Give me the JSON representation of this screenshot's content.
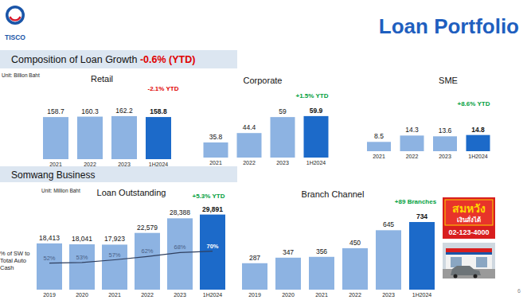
{
  "page": {
    "logo": "TISCO",
    "title": "Loan Portfolio",
    "section_1": {
      "label": "Composition of Loan Growth",
      "value": "-0.6% (YTD)"
    },
    "unit_1": "Unit: Billion Baht",
    "section_2": "Somwang Business",
    "unit_2": "Unit: Million Baht",
    "brand": {
      "name": "สมหวัง",
      "tagline": "เงินสั่งได้",
      "phone": "02-123-4000"
    },
    "page_number": "6"
  },
  "chart_data": [
    {
      "type": "bar",
      "title": "Retail",
      "annotation": "-2.1% YTD",
      "categories": [
        "2021",
        "2022",
        "2023",
        "1H2024"
      ],
      "values": [
        158.7,
        160.3,
        162.2,
        158.8
      ],
      "colors": [
        "#8db3e2",
        "#8db3e2",
        "#8db3e2",
        "#1c6ac9"
      ],
      "ylim": [
        0,
        180
      ],
      "yticks": [],
      "grid": false,
      "data_labels": true,
      "tick_labels": "x"
    },
    {
      "type": "bar",
      "title": "Corporate",
      "annotation": "+1.5% YTD",
      "categories": [
        "2021",
        "2022",
        "2023",
        "1H2024"
      ],
      "values": [
        35.8,
        44.4,
        59.0,
        59.9
      ],
      "colors": [
        "#8db3e2",
        "#8db3e2",
        "#8db3e2",
        "#1c6ac9"
      ],
      "ylim": [
        22,
        62
      ],
      "yticks": [],
      "grid": false,
      "data_labels": true,
      "tick_labels": "x"
    },
    {
      "type": "bar",
      "title": "SME",
      "annotation": "+8.6% YTD",
      "categories": [
        "2021",
        "2022",
        "2023",
        "1H2024"
      ],
      "values": [
        8.5,
        14.3,
        13.6,
        14.8
      ],
      "colors": [
        "#8db3e2",
        "#8db3e2",
        "#8db3e2",
        "#1c6ac9"
      ],
      "ylim": [
        0,
        40
      ],
      "yticks": [],
      "grid": false,
      "data_labels": true,
      "tick_labels": "x"
    },
    {
      "type": "bar",
      "title": "Loan Outstanding",
      "annotation": "+5.3% YTD",
      "categories": [
        "2019",
        "2020",
        "2021",
        "2022",
        "2023",
        "1H2024"
      ],
      "series": [
        {
          "type": "bar",
          "values": [
            18413,
            18041,
            17923,
            22579,
            28388,
            29891
          ],
          "value_labels": [
            "18,413",
            "18,041",
            "17,923",
            "22,579",
            "28,388",
            "29,891"
          ],
          "colors": [
            "#8db3e2",
            "#8db3e2",
            "#8db3e2",
            "#8db3e2",
            "#8db3e2",
            "#1c6ac9"
          ]
        },
        {
          "name": "% of SW to Total Auto Cash",
          "type": "line",
          "axis": "y2",
          "color": "#2f3f5f",
          "marker": "none",
          "line_style": "solid",
          "values": [
            52,
            53,
            57,
            62,
            68,
            70
          ],
          "value_labels": [
            "52%",
            "53%",
            "57%",
            "62%",
            "68%",
            "70%"
          ]
        }
      ],
      "ylim": [
        0,
        38000
      ],
      "yticks": [],
      "y2lim": [
        12,
        156
      ],
      "y2ticks": [],
      "grid": false,
      "legend": "left",
      "data_labels": true,
      "tick_labels": "x"
    },
    {
      "type": "bar",
      "title": "Branch Channel",
      "annotation": "+89 Branches",
      "categories": [
        "2019",
        "2020",
        "2021",
        "2022",
        "2023",
        "1H2024"
      ],
      "values": [
        287,
        347,
        356,
        450,
        645,
        734
      ],
      "colors": [
        "#8db3e2",
        "#8db3e2",
        "#8db3e2",
        "#8db3e2",
        "#8db3e2",
        "#1c6ac9"
      ],
      "ylim": [
        0,
        950
      ],
      "yticks": [],
      "grid": false,
      "data_labels": true,
      "tick_labels": "x"
    }
  ]
}
